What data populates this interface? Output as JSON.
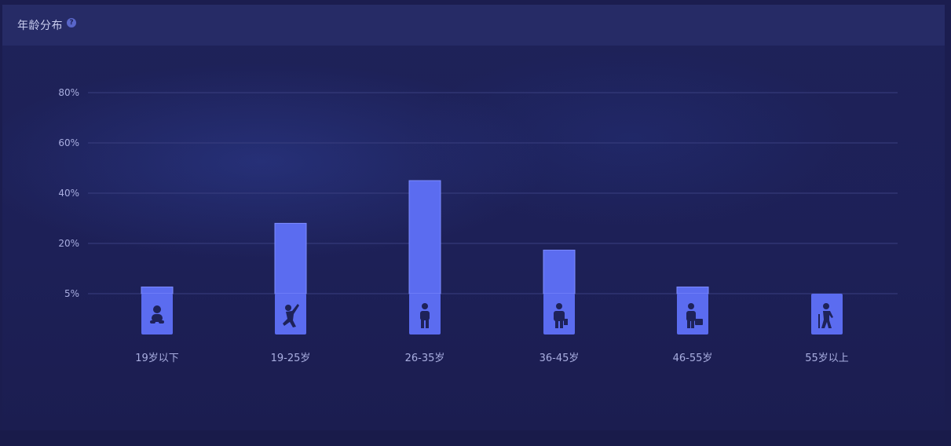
{
  "header": {
    "title": "年龄分布",
    "help_icon": "?"
  },
  "chart_data": {
    "type": "bar",
    "categories": [
      "19岁以下",
      "19-25岁",
      "26-35岁",
      "36-45岁",
      "46-55岁",
      "55岁以上"
    ],
    "values": [
      7,
      28,
      45,
      18,
      7,
      5
    ],
    "y_ticks": [
      "5%",
      "20%",
      "40%",
      "60%",
      "80%"
    ],
    "icons": [
      "baby-icon",
      "young-person-icon",
      "adult-icon",
      "businessman-icon",
      "worker-briefcase-icon",
      "elderly-cane-icon"
    ],
    "grid": true,
    "colors": {
      "bar": "#5b6cf0",
      "bar_top": "#7d8cff",
      "grid": "#3a3f80",
      "text": "#a9aee0"
    }
  }
}
